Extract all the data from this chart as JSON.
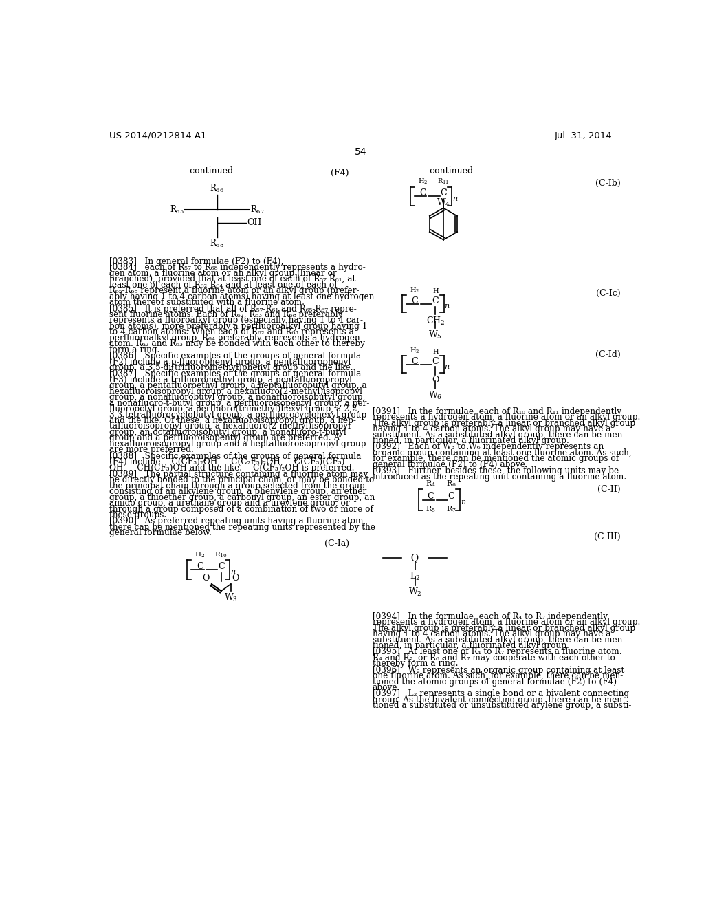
{
  "background_color": "#ffffff",
  "header_left": "US 2014/0212814 A1",
  "header_right": "Jul. 31, 2014",
  "page_number": "54"
}
